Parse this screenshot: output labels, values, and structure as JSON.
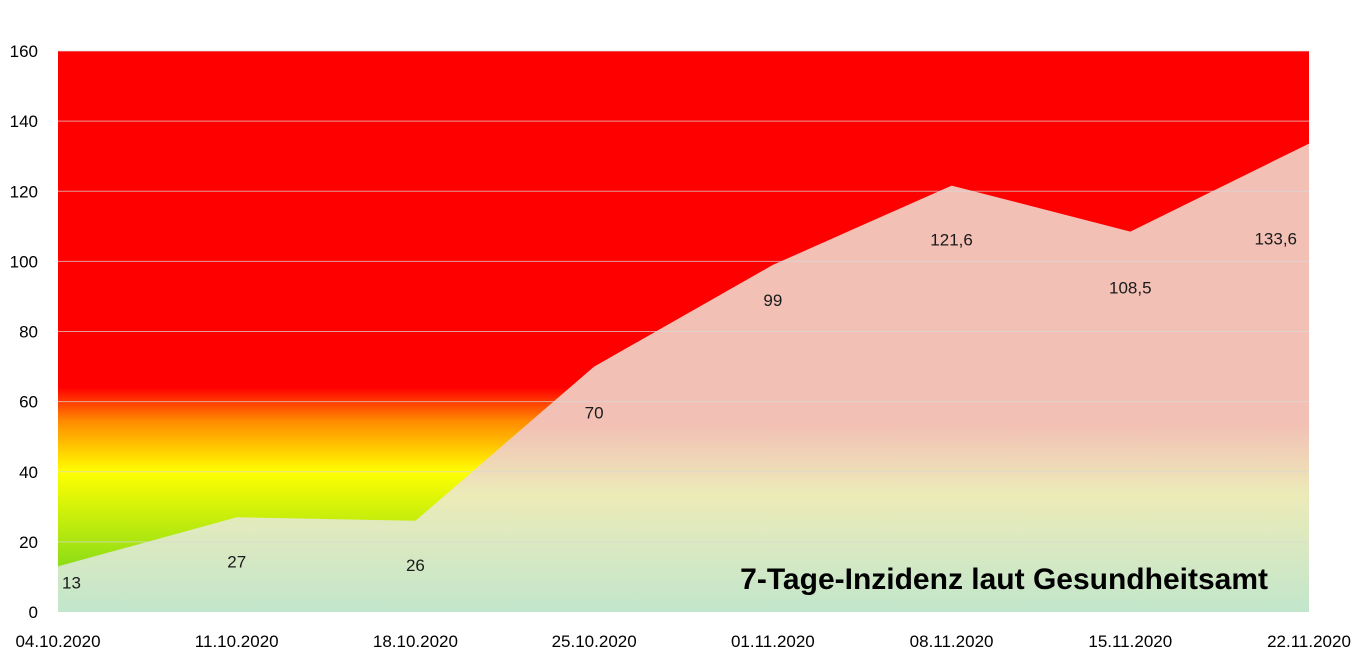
{
  "chart_data": {
    "type": "area",
    "title": "7-Tage-Inzidenz laut Gesundheitsamt",
    "xlabel": "",
    "ylabel": "",
    "categories": [
      "04.10.2020",
      "11.10.2020",
      "18.10.2020",
      "25.10.2020",
      "01.11.2020",
      "08.11.2020",
      "15.11.2020",
      "22.11.2020"
    ],
    "series": [
      {
        "values": [
          13,
          27,
          26,
          70,
          99,
          121.6,
          108.5,
          133.6
        ]
      }
    ],
    "data_labels": [
      "13",
      "27",
      "26",
      "70",
      "99",
      "121,6",
      "108,5",
      "133,6"
    ],
    "yticks": [
      "0",
      "20",
      "40",
      "60",
      "80",
      "100",
      "120",
      "140",
      "160"
    ],
    "ylim": [
      0,
      160
    ],
    "grid": true,
    "legend": "none",
    "colors": {
      "red_zone": "#ff0000",
      "orange_zone": "#ff8c00",
      "yellow_zone": "#ffff00",
      "green_zone": "#55cc22",
      "area_fill": "#f2c0b5",
      "area_fill_bottom": "#c2e6cc",
      "gridline": "#d9d9d9"
    }
  }
}
